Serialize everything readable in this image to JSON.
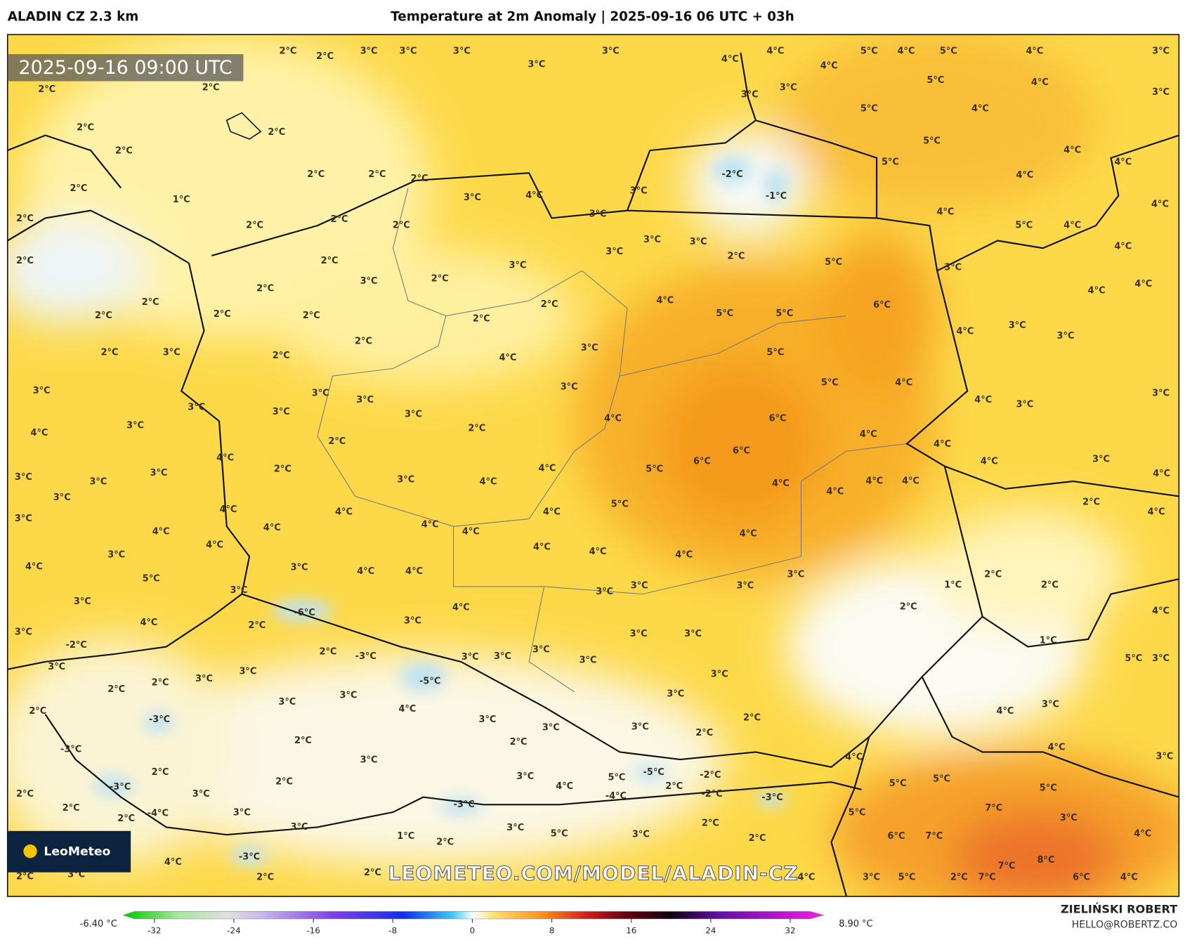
{
  "header": {
    "model": "ALADIN CZ 2.3 km",
    "title": "Temperature at 2m Anomaly | 2025-09-16 06 UTC + 03h"
  },
  "map": {
    "timestamp": "2025-09-16 09:00 UTC",
    "watermark": "LEOMETEO.COM/MODEL/ALADIN-CZ",
    "logo": "LeoMeteo",
    "labels": [
      "2°C",
      "2°C",
      "3°C",
      "3°C",
      "3°C",
      "3°C",
      "4°C",
      "4°C",
      "5°C",
      "4°C",
      "5°C",
      "4°C",
      "3°C",
      "3°C",
      "4°C",
      "3°C",
      "3°C",
      "5°C",
      "4°C",
      "3°C",
      "2°C",
      "2°C",
      "4°C",
      "5°C",
      "2°C",
      "2°C",
      "5°C",
      "4°C",
      "2°C",
      "-2°C",
      "-1°C",
      "2°C",
      "2°C",
      "2°C",
      "3°C",
      "4°C",
      "3°C",
      "1°C",
      "2°C",
      "5°C",
      "4°C",
      "4°C",
      "4°C",
      "4°C",
      "3°C",
      "2°C",
      "2°C",
      "2°C",
      "2°C",
      "5°C",
      "4°C",
      "3°C",
      "3°C",
      "3°C",
      "2°C",
      "5°C",
      "2°C",
      "2°C",
      "3°C",
      "3°C",
      "4°C",
      "2°C",
      "2°C",
      "3°C",
      "4°C",
      "4°C",
      "4°C",
      "2°C",
      "2°C",
      "6°C",
      "5°C",
      "5°C",
      "2°C",
      "2°C",
      "2°C",
      "2°C",
      "3°C",
      "4°C",
      "3°C",
      "2°C",
      "3°C",
      "5°C",
      "2°C",
      "3°C",
      "2°C",
      "4°C",
      "5°C",
      "4°C",
      "3°C",
      "3°C",
      "3°C",
      "3°C",
      "4°C",
      "3°C",
      "3°C",
      "3°C",
      "3°C",
      "3°C",
      "4°C",
      "6°C",
      "3°C",
      "2°C",
      "4°C",
      "4°C",
      "2°C",
      "4°C",
      "6°C",
      "4°C",
      "6°C",
      "4°C",
      "3°C",
      "5°C",
      "4°C",
      "2°C",
      "3°C",
      "3°C",
      "3°C",
      "4°C",
      "4°C",
      "3°C",
      "4°C",
      "4°C",
      "4°C",
      "4°C",
      "3°C",
      "2°C",
      "5°C",
      "3°C",
      "4°C",
      "4°C",
      "4°C",
      "4°C",
      "4°C",
      "4°C",
      "4°C",
      "4°C",
      "4°C",
      "4°C",
      "4°C",
      "4°C",
      "4°C",
      "3°C",
      "4°C",
      "3°C",
      "4°C",
      "4°C",
      "2°C",
      "3°C",
      "1°C",
      "2°C",
      "3°C",
      "5°C",
      "3°C",
      "3°C",
      "3°C",
      "3°C",
      "2°C",
      "4°C",
      "-6°C",
      "4°C",
      "3°C",
      "4°C",
      "2°C",
      "3°C",
      "3°C",
      "3°C",
      "1°C",
      "-2°C",
      "3°C",
      "2°C",
      "-3°C",
      "3°C",
      "3°C",
      "3°C",
      "5°C",
      "3°C",
      "3°C",
      "3°C",
      "3°C",
      "3°C",
      "2°C",
      "-5°C",
      "2°C",
      "3°C",
      "3°C",
      "3°C",
      "3°C",
      "4°C",
      "4°C",
      "2°C",
      "3°C",
      "2°C",
      "-3°C",
      "3°C",
      "3°C",
      "2°C",
      "2°C",
      "2°C",
      "4°C",
      "3°C",
      "4°C",
      "3°C",
      "-3°C",
      "2°C",
      "3°C",
      "5°C",
      "-5°C",
      "-2°C",
      "5°C",
      "5°C",
      "2°C",
      "3°C",
      "-3°C",
      "4°C",
      "2°C",
      "-2°C",
      "-4°C",
      "-3°C",
      "5°C",
      "2°C",
      "2°C",
      "3°C",
      "7°C",
      "-4°C",
      "-3°C",
      "5°C",
      "2°C",
      "3°C",
      "2°C",
      "3°C",
      "3°C",
      "5°C",
      "3°C",
      "1°C",
      "6°C",
      "7°C",
      "4°C",
      "2°C",
      "2°C",
      "-3°C",
      "8°C",
      "4°C",
      "7°C",
      "2°C",
      "2°C",
      "3°C",
      "2°C",
      "4°C",
      "3°C",
      "5°C",
      "2°C",
      "7°C",
      "6°C",
      "4°C"
    ]
  },
  "colorbar": {
    "min_label": "-6.40 °C",
    "max_label": "8.90 °C",
    "range": [
      -34,
      34
    ],
    "ticks": [
      -32,
      -24,
      -16,
      -8,
      0,
      8,
      16,
      24,
      32
    ]
  },
  "credits": {
    "author": "ZIELIŃSKI ROBERT",
    "contact": "HELLO@ROBERTZ.CO"
  }
}
